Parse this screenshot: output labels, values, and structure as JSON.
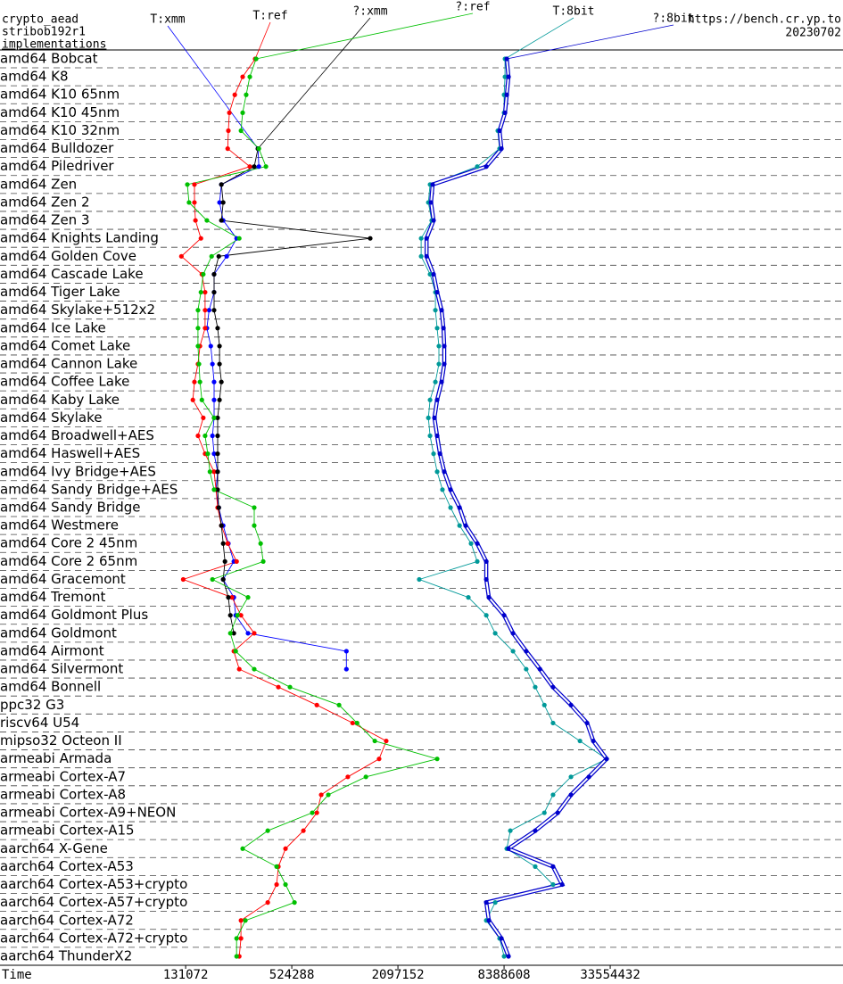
{
  "chart_data": {
    "type": "dotline",
    "title": "crypto_aead",
    "subtitle": "stribob192r1",
    "y_label": "implementations",
    "source": "https://bench.cr.yp.to",
    "date": "20230702",
    "x_label": "Time",
    "xlog": true,
    "xlim": [
      11600,
      662000000
    ],
    "xticks": [
      131072,
      524288,
      2097152,
      8388608,
      33554432
    ],
    "categories": [
      "amd64 Bobcat",
      "amd64 K8",
      "amd64 K10 65nm",
      "amd64 K10 45nm",
      "amd64 K10 32nm",
      "amd64 Bulldozer",
      "amd64 Piledriver",
      "amd64 Zen",
      "amd64 Zen 2",
      "amd64 Zen 3",
      "amd64 Knights Landing",
      "amd64 Golden Cove",
      "amd64 Cascade Lake",
      "amd64 Tiger Lake",
      "amd64 Skylake+512x2",
      "amd64 Ice Lake",
      "amd64 Comet Lake",
      "amd64 Cannon Lake",
      "amd64 Coffee Lake",
      "amd64 Kaby Lake",
      "amd64 Skylake",
      "amd64 Broadwell+AES",
      "amd64 Haswell+AES",
      "amd64 Ivy Bridge+AES",
      "amd64 Sandy Bridge+AES",
      "amd64 Sandy Bridge",
      "amd64 Westmere",
      "amd64 Core 2 45nm",
      "amd64 Core 2 65nm",
      "amd64 Gracemont",
      "amd64 Tremont",
      "amd64 Goldmont Plus",
      "amd64 Goldmont",
      "amd64 Airmont",
      "amd64 Silvermont",
      "amd64 Bonnell",
      "ppc32 G3",
      "riscv64 U54",
      "mipso32 Octeon II",
      "armeabi Armada",
      "armeabi Cortex-A7",
      "armeabi Cortex-A8",
      "armeabi Cortex-A9+NEON",
      "armeabi Cortex-A15",
      "aarch64 X-Gene",
      "aarch64 Cortex-A53",
      "aarch64 Cortex-A53+crypto",
      "aarch64 Cortex-A57+crypto",
      "aarch64 Cortex-A72",
      "aarch64 Cortex-A72+crypto",
      "aarch64 ThunderX2"
    ],
    "series": [
      {
        "name": "T:xmm",
        "color": "#0000ff",
        "values": [
          null,
          null,
          null,
          null,
          null,
          337000,
          341000,
          209000,
          204000,
          214000,
          255000,
          224000,
          190000,
          190000,
          178000,
          173000,
          182000,
          186000,
          190000,
          190000,
          190000,
          186000,
          190000,
          199000,
          195000,
          202000,
          214000,
          229000,
          246000,
          214000,
          246000,
          252000,
          296000,
          1070000,
          1070000,
          null,
          null,
          null,
          null,
          null,
          null,
          null,
          null,
          null,
          null,
          null,
          null,
          null,
          null,
          null,
          null
        ]
      },
      {
        "name": "T:ref",
        "color": "#ff0000",
        "values": [
          325000,
          276000,
          249000,
          232000,
          229000,
          227000,
          303000,
          147000,
          147000,
          149000,
          160000,
          124000,
          162000,
          169000,
          169000,
          169000,
          158000,
          154000,
          147000,
          144000,
          165000,
          154000,
          169000,
          190000,
          195000,
          199000,
          209000,
          227000,
          255000,
          127000,
          240000,
          270000,
          321000,
          246000,
          264000,
          440000,
          727000,
          1160000,
          1800000,
          1640000,
          1090000,
          770000,
          727000,
          610000,
          483000,
          440000,
          430000,
          383000,
          270000,
          270000,
          264000
        ]
      },
      {
        "name": "?:xmm",
        "color": "#000000",
        "values": [
          null,
          null,
          null,
          null,
          null,
          337000,
          321000,
          209000,
          214000,
          209000,
          1460000,
          202000,
          190000,
          190000,
          190000,
          199000,
          204000,
          204000,
          209000,
          204000,
          199000,
          199000,
          199000,
          199000,
          199000,
          202000,
          209000,
          214000,
          219000,
          214000,
          229000,
          235000,
          246000,
          null,
          null,
          null,
          null,
          null,
          null,
          null,
          null,
          null,
          null,
          null,
          null,
          null,
          null,
          null,
          null,
          null,
          null
        ]
      },
      {
        "name": "?:ref",
        "color": "#00c000",
        "values": [
          329000,
          303000,
          289000,
          276000,
          270000,
          341000,
          374000,
          134000,
          137000,
          173000,
          264000,
          184000,
          165000,
          160000,
          154000,
          154000,
          154000,
          156000,
          158000,
          162000,
          190000,
          169000,
          175000,
          180000,
          190000,
          321000,
          321000,
          349000,
          361000,
          186000,
          296000,
          258000,
          235000,
          252000,
          321000,
          512000,
          972000,
          1230000,
          1550000,
          3500000,
          1380000,
          845000,
          685000,
          383000,
          276000,
          430000,
          483000,
          543000,
          286000,
          255000,
          255000
        ]
      },
      {
        "name": "T:8bit",
        "color": "#009999",
        "values": [
          8490000,
          8490000,
          8390000,
          8390000,
          7730000,
          7910000,
          5910000,
          3190000,
          3120000,
          3260000,
          2840000,
          2840000,
          3190000,
          3420000,
          3420000,
          3500000,
          3580000,
          3580000,
          3420000,
          3190000,
          3120000,
          3190000,
          3340000,
          3500000,
          3750000,
          4170000,
          4690000,
          5450000,
          5910000,
          2770000,
          5260000,
          6650000,
          7470000,
          9430000,
          11200000,
          12600000,
          14200000,
          15900000,
          22600000,
          32000000,
          20100000,
          15900000,
          14200000,
          9100000,
          8690000,
          12600000,
          15900000,
          7470000,
          6650000,
          7910000,
          8390000
        ]
      },
      {
        "name": "?:8bit",
        "color": "#0000cc",
        "line_style": "double",
        "values": [
          8690000,
          8890000,
          8690000,
          8490000,
          7910000,
          8100000,
          6650000,
          3300000,
          3230000,
          3340000,
          3050000,
          3050000,
          3340000,
          3500000,
          3710000,
          3800000,
          3840000,
          3840000,
          3710000,
          3500000,
          3380000,
          3500000,
          3630000,
          3840000,
          4170000,
          4690000,
          5080000,
          5910000,
          6650000,
          6650000,
          6880000,
          8390000,
          9430000,
          11200000,
          13400000,
          15900000,
          20100000,
          24800000,
          26900000,
          32000000,
          25400000,
          20100000,
          16900000,
          12600000,
          8890000,
          15900000,
          17900000,
          6650000,
          6880000,
          8100000,
          8890000
        ]
      }
    ]
  }
}
